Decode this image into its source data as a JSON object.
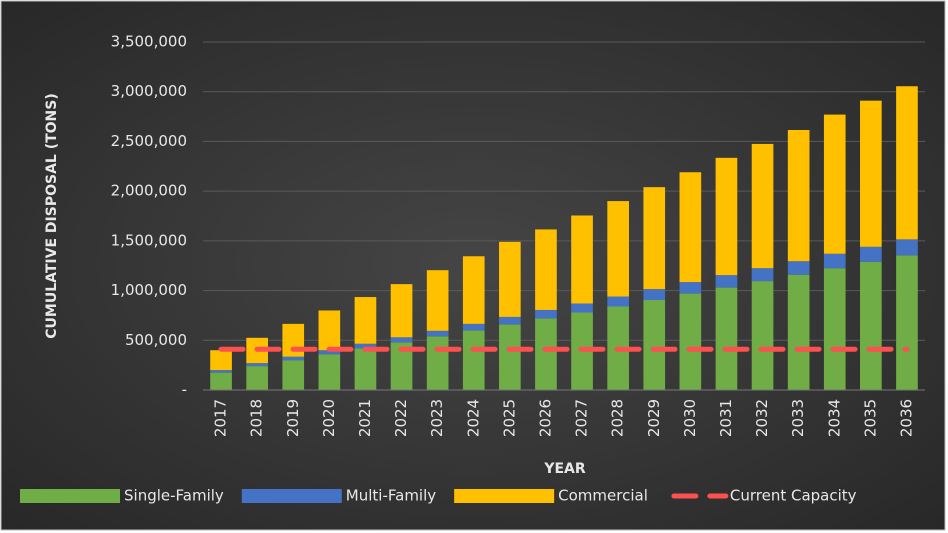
{
  "chart_data": {
    "type": "bar",
    "stacked": true,
    "y_label": "CUMULATIVE DISPOSAL (TONS)",
    "x_label": "YEAR",
    "categories": [
      "2017",
      "2018",
      "2019",
      "2020",
      "2021",
      "2022",
      "2023",
      "2024",
      "2025",
      "2026",
      "2027",
      "2028",
      "2029",
      "2030",
      "2031",
      "2032",
      "2033",
      "2034",
      "2035",
      "2036"
    ],
    "series": [
      {
        "name": "Single-Family",
        "color": "#70ad47",
        "values": [
          175000,
          240000,
          300000,
          360000,
          420000,
          480000,
          540000,
          600000,
          660000,
          720000,
          780000,
          840000,
          905000,
          970000,
          1030000,
          1095000,
          1160000,
          1225000,
          1290000,
          1355000
        ]
      },
      {
        "name": "Multi-Family",
        "color": "#4472c4",
        "values": [
          25000,
          30000,
          35000,
          40000,
          45000,
          50000,
          55000,
          65000,
          75000,
          85000,
          90000,
          100000,
          110000,
          115000,
          125000,
          130000,
          135000,
          145000,
          150000,
          160000
        ]
      },
      {
        "name": "Commercial",
        "color": "#ffc000",
        "values": [
          200000,
          255000,
          330000,
          400000,
          470000,
          535000,
          610000,
          680000,
          755000,
          810000,
          885000,
          960000,
          1025000,
          1105000,
          1180000,
          1250000,
          1320000,
          1400000,
          1470000,
          1540000
        ]
      },
      {
        "name": "Current Capacity",
        "color": "#ff5050",
        "type": "line",
        "dashed": true,
        "values": [
          410000,
          410000,
          410000,
          410000,
          410000,
          410000,
          410000,
          410000,
          410000,
          410000,
          410000,
          410000,
          410000,
          410000,
          410000,
          410000,
          410000,
          410000,
          410000,
          410000
        ]
      }
    ],
    "ylim": [
      0,
      3500000
    ],
    "yticks": [
      {
        "value": 0,
        "label": "-"
      },
      {
        "value": 500000,
        "label": "500,000"
      },
      {
        "value": 1000000,
        "label": "1,000,000"
      },
      {
        "value": 1500000,
        "label": "1,500,000"
      },
      {
        "value": 2000000,
        "label": "2,000,000"
      },
      {
        "value": 2500000,
        "label": "2,500,000"
      },
      {
        "value": 3000000,
        "label": "3,000,000"
      },
      {
        "value": 3500000,
        "label": "3,500,000"
      }
    ],
    "grid": true,
    "legend": "bottom"
  }
}
